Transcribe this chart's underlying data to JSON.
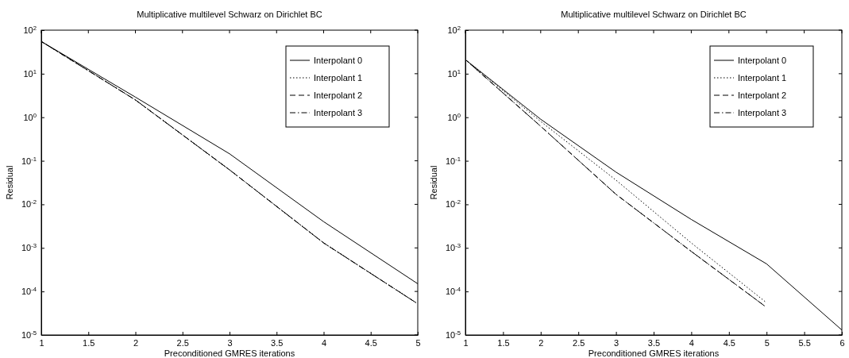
{
  "chart_data": [
    {
      "type": "line",
      "title": "Multiplicative multilevel Schwarz on Dirichlet BC",
      "xlabel": "Preconditioned GMRES iterations",
      "ylabel": "Residual",
      "log": "y",
      "legend": "top right",
      "grid": false,
      "xlim": [
        1,
        5
      ],
      "xticks": [
        1,
        1.5,
        2,
        2.5,
        3,
        3.5,
        4,
        4.5,
        5
      ],
      "ylim": [
        1e-05,
        100
      ],
      "yticks": [
        {
          "value": 1e-05,
          "label": "10$^{-5}$"
        },
        {
          "value": 0.0001,
          "label": "10$^{-4}$"
        },
        {
          "value": 0.001,
          "label": "10$^{-3}$"
        },
        {
          "value": 0.01,
          "label": "10$^{-2}$"
        },
        {
          "value": 0.1,
          "label": "10$^{-1}$"
        },
        {
          "value": 1,
          "label": "10$^{0}$"
        },
        {
          "value": 10,
          "label": "10$^{1}$"
        },
        {
          "value": 100,
          "label": "10$^{2}$"
        }
      ],
      "x": [
        1,
        2,
        3,
        4,
        5
      ],
      "series": [
        {
          "name": "Interpolant 0",
          "color": "#000000",
          "line_style": "solid",
          "values": [
            55,
            2.9,
            0.145,
            0.004,
            0.00015
          ]
        },
        {
          "name": "Interpolant 1",
          "color": "#000000",
          "line_style": "dotted",
          "values": [
            55,
            2.5,
            0.062,
            0.0013,
            5.2e-05
          ]
        },
        {
          "name": "Interpolant 2",
          "color": "#000000",
          "line_style": "dashed",
          "values": [
            55,
            2.5,
            0.062,
            0.0013,
            5.2e-05
          ]
        },
        {
          "name": "Interpolant 3",
          "color": "#000000",
          "line_style": "dashdot",
          "values": [
            55,
            2.5,
            0.062,
            0.0013,
            5.2e-05
          ]
        }
      ]
    },
    {
      "type": "line",
      "title": "Multiplicative multilevel Schwarz on Dirichlet BC",
      "xlabel": "Preconditioned GMRES iterations",
      "ylabel": "Residual",
      "log": "y",
      "legend": "top right",
      "grid": false,
      "xlim": [
        1,
        6
      ],
      "xticks": [
        1,
        1.5,
        2,
        2.5,
        3,
        3.5,
        4,
        4.5,
        5,
        5.5,
        6
      ],
      "ylim": [
        1e-05,
        100
      ],
      "yticks": [
        {
          "value": 1e-05,
          "label": "10$^{-5}$"
        },
        {
          "value": 0.0001,
          "label": "10$^{-4}$"
        },
        {
          "value": 0.001,
          "label": "10$^{-3}$"
        },
        {
          "value": 0.01,
          "label": "10$^{-2}$"
        },
        {
          "value": 0.1,
          "label": "10$^{-1}$"
        },
        {
          "value": 1,
          "label": "10$^{0}$"
        },
        {
          "value": 10,
          "label": "10$^{1}$"
        },
        {
          "value": 100,
          "label": "10$^{2}$"
        }
      ],
      "series": [
        {
          "name": "Interpolant 0",
          "color": "#000000",
          "line_style": "solid",
          "x": [
            1,
            2,
            3,
            4,
            5,
            6
          ],
          "values": [
            21,
            0.9,
            0.055,
            0.0045,
            0.00043,
            1.3e-05
          ]
        },
        {
          "name": "Interpolant 1",
          "color": "#000000",
          "line_style": "dotted",
          "x": [
            1,
            2,
            3,
            4,
            5
          ],
          "values": [
            21,
            0.8,
            0.036,
            0.0013,
            5.5e-05
          ]
        },
        {
          "name": "Interpolant 2",
          "color": "#000000",
          "line_style": "dashed",
          "x": [
            1,
            2,
            3,
            4,
            5
          ],
          "values": [
            21,
            0.62,
            0.017,
            0.00083,
            4.3e-05
          ]
        },
        {
          "name": "Interpolant 3",
          "color": "#000000",
          "line_style": "dashdot",
          "x": [
            1,
            2,
            3,
            4,
            5
          ],
          "values": [
            21,
            0.62,
            0.017,
            0.00083,
            4.3e-05
          ]
        }
      ]
    }
  ]
}
